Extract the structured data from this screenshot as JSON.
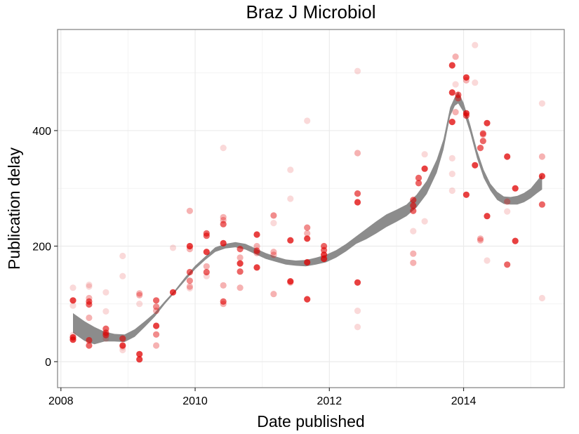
{
  "chart_data": {
    "type": "scatter",
    "title": "Braz J Microbiol",
    "xlabel": "Date published",
    "ylabel": "Publication delay",
    "xlim": [
      2007.95,
      2015.5
    ],
    "ylim": [
      -45,
      575
    ],
    "x_ticks": [
      2008,
      2010,
      2012,
      2014
    ],
    "x_tick_labels": [
      "2008",
      "2010",
      "2012",
      "2014"
    ],
    "y_ticks": [
      0,
      200,
      400
    ],
    "y_tick_labels": [
      "0",
      "200",
      "400"
    ],
    "grid": true,
    "legend": "none",
    "colors": {
      "point": "#e00000",
      "smooth": "#8c8c8c",
      "grid": "#ebebeb",
      "border": "#7f7f7f"
    },
    "points": [
      {
        "x": 2008.18,
        "y": 106,
        "a": 0.75
      },
      {
        "x": 2008.18,
        "y": 42,
        "a": 0.75
      },
      {
        "x": 2008.18,
        "y": 38,
        "a": 0.75
      },
      {
        "x": 2008.18,
        "y": 128,
        "a": 0.15
      },
      {
        "x": 2008.18,
        "y": 97,
        "a": 0.15
      },
      {
        "x": 2008.18,
        "y": 46,
        "a": 0.15
      },
      {
        "x": 2008.42,
        "y": 133,
        "a": 0.15
      },
      {
        "x": 2008.42,
        "y": 130,
        "a": 0.15
      },
      {
        "x": 2008.42,
        "y": 110,
        "a": 0.3
      },
      {
        "x": 2008.42,
        "y": 104,
        "a": 0.6
      },
      {
        "x": 2008.42,
        "y": 99,
        "a": 0.6
      },
      {
        "x": 2008.42,
        "y": 76,
        "a": 0.3
      },
      {
        "x": 2008.42,
        "y": 37,
        "a": 0.6
      },
      {
        "x": 2008.42,
        "y": 28,
        "a": 0.6
      },
      {
        "x": 2008.67,
        "y": 120,
        "a": 0.15
      },
      {
        "x": 2008.67,
        "y": 87,
        "a": 0.15
      },
      {
        "x": 2008.67,
        "y": 57,
        "a": 0.6
      },
      {
        "x": 2008.67,
        "y": 50,
        "a": 0.6
      },
      {
        "x": 2008.67,
        "y": 46,
        "a": 0.6
      },
      {
        "x": 2008.67,
        "y": 40,
        "a": 0.15
      },
      {
        "x": 2008.92,
        "y": 183,
        "a": 0.15
      },
      {
        "x": 2008.92,
        "y": 148,
        "a": 0.15
      },
      {
        "x": 2008.92,
        "y": 40,
        "a": 0.6
      },
      {
        "x": 2008.92,
        "y": 28,
        "a": 0.75
      },
      {
        "x": 2008.92,
        "y": 25,
        "a": 0.15
      },
      {
        "x": 2008.92,
        "y": 20,
        "a": 0.15
      },
      {
        "x": 2009.17,
        "y": 118,
        "a": 0.3
      },
      {
        "x": 2009.17,
        "y": 115,
        "a": 0.3
      },
      {
        "x": 2009.17,
        "y": 100,
        "a": 0.15
      },
      {
        "x": 2009.17,
        "y": 13,
        "a": 0.75
      },
      {
        "x": 2009.17,
        "y": 4,
        "a": 0.75
      },
      {
        "x": 2009.42,
        "y": 106,
        "a": 0.6
      },
      {
        "x": 2009.42,
        "y": 95,
        "a": 0.45
      },
      {
        "x": 2009.42,
        "y": 88,
        "a": 0.3
      },
      {
        "x": 2009.42,
        "y": 62,
        "a": 0.75
      },
      {
        "x": 2009.42,
        "y": 47,
        "a": 0.45
      },
      {
        "x": 2009.42,
        "y": 28,
        "a": 0.3
      },
      {
        "x": 2009.67,
        "y": 197,
        "a": 0.15
      },
      {
        "x": 2009.67,
        "y": 120,
        "a": 0.75
      },
      {
        "x": 2009.92,
        "y": 261,
        "a": 0.3
      },
      {
        "x": 2009.92,
        "y": 200,
        "a": 0.75
      },
      {
        "x": 2009.92,
        "y": 195,
        "a": 0.3
      },
      {
        "x": 2009.92,
        "y": 155,
        "a": 0.6
      },
      {
        "x": 2009.92,
        "y": 140,
        "a": 0.45
      },
      {
        "x": 2009.92,
        "y": 130,
        "a": 0.3
      },
      {
        "x": 2009.92,
        "y": 127,
        "a": 0.15
      },
      {
        "x": 2010.17,
        "y": 222,
        "a": 0.6
      },
      {
        "x": 2010.17,
        "y": 218,
        "a": 0.6
      },
      {
        "x": 2010.17,
        "y": 190,
        "a": 0.75
      },
      {
        "x": 2010.17,
        "y": 165,
        "a": 0.3
      },
      {
        "x": 2010.17,
        "y": 155,
        "a": 0.6
      },
      {
        "x": 2010.17,
        "y": 148,
        "a": 0.15
      },
      {
        "x": 2010.42,
        "y": 370,
        "a": 0.15
      },
      {
        "x": 2010.42,
        "y": 250,
        "a": 0.3
      },
      {
        "x": 2010.42,
        "y": 245,
        "a": 0.3
      },
      {
        "x": 2010.42,
        "y": 238,
        "a": 0.6
      },
      {
        "x": 2010.42,
        "y": 205,
        "a": 0.75
      },
      {
        "x": 2010.42,
        "y": 132,
        "a": 0.3
      },
      {
        "x": 2010.42,
        "y": 104,
        "a": 0.6
      },
      {
        "x": 2010.42,
        "y": 100,
        "a": 0.3
      },
      {
        "x": 2010.67,
        "y": 195,
        "a": 0.6
      },
      {
        "x": 2010.67,
        "y": 180,
        "a": 0.3
      },
      {
        "x": 2010.67,
        "y": 170,
        "a": 0.75
      },
      {
        "x": 2010.67,
        "y": 156,
        "a": 0.6
      },
      {
        "x": 2010.67,
        "y": 128,
        "a": 0.3
      },
      {
        "x": 2010.92,
        "y": 220,
        "a": 0.75
      },
      {
        "x": 2010.92,
        "y": 200,
        "a": 0.3
      },
      {
        "x": 2010.92,
        "y": 192,
        "a": 0.6
      },
      {
        "x": 2010.92,
        "y": 188,
        "a": 0.3
      },
      {
        "x": 2010.92,
        "y": 163,
        "a": 0.75
      },
      {
        "x": 2011.17,
        "y": 253,
        "a": 0.45
      },
      {
        "x": 2011.17,
        "y": 240,
        "a": 0.15
      },
      {
        "x": 2011.17,
        "y": 190,
        "a": 0.3
      },
      {
        "x": 2011.17,
        "y": 185,
        "a": 0.3
      },
      {
        "x": 2011.17,
        "y": 117,
        "a": 0.3
      },
      {
        "x": 2011.42,
        "y": 332,
        "a": 0.15
      },
      {
        "x": 2011.42,
        "y": 282,
        "a": 0.15
      },
      {
        "x": 2011.42,
        "y": 210,
        "a": 0.75
      },
      {
        "x": 2011.42,
        "y": 139,
        "a": 0.75
      },
      {
        "x": 2011.42,
        "y": 137,
        "a": 0.3
      },
      {
        "x": 2011.67,
        "y": 417,
        "a": 0.15
      },
      {
        "x": 2011.67,
        "y": 232,
        "a": 0.45
      },
      {
        "x": 2011.67,
        "y": 222,
        "a": 0.3
      },
      {
        "x": 2011.67,
        "y": 213,
        "a": 0.75
      },
      {
        "x": 2011.67,
        "y": 172,
        "a": 0.75
      },
      {
        "x": 2011.67,
        "y": 108,
        "a": 0.75
      },
      {
        "x": 2011.92,
        "y": 200,
        "a": 0.6
      },
      {
        "x": 2011.92,
        "y": 193,
        "a": 0.6
      },
      {
        "x": 2011.92,
        "y": 185,
        "a": 0.75
      },
      {
        "x": 2011.92,
        "y": 178,
        "a": 0.75
      },
      {
        "x": 2012.42,
        "y": 503,
        "a": 0.15
      },
      {
        "x": 2012.42,
        "y": 361,
        "a": 0.3
      },
      {
        "x": 2012.42,
        "y": 291,
        "a": 0.6
      },
      {
        "x": 2012.42,
        "y": 276,
        "a": 0.75
      },
      {
        "x": 2012.42,
        "y": 137,
        "a": 0.75
      },
      {
        "x": 2012.42,
        "y": 88,
        "a": 0.15
      },
      {
        "x": 2012.42,
        "y": 60,
        "a": 0.15
      },
      {
        "x": 2013.25,
        "y": 280,
        "a": 0.6
      },
      {
        "x": 2013.25,
        "y": 270,
        "a": 0.6
      },
      {
        "x": 2013.25,
        "y": 261,
        "a": 0.6
      },
      {
        "x": 2013.25,
        "y": 226,
        "a": 0.15
      },
      {
        "x": 2013.25,
        "y": 187,
        "a": 0.3
      },
      {
        "x": 2013.25,
        "y": 171,
        "a": 0.3
      },
      {
        "x": 2013.33,
        "y": 318,
        "a": 0.6
      },
      {
        "x": 2013.33,
        "y": 309,
        "a": 0.6
      },
      {
        "x": 2013.42,
        "y": 359,
        "a": 0.15
      },
      {
        "x": 2013.42,
        "y": 334,
        "a": 0.75
      },
      {
        "x": 2013.42,
        "y": 243,
        "a": 0.15
      },
      {
        "x": 2013.83,
        "y": 513,
        "a": 0.75
      },
      {
        "x": 2013.83,
        "y": 466,
        "a": 0.75
      },
      {
        "x": 2013.83,
        "y": 415,
        "a": 0.75
      },
      {
        "x": 2013.83,
        "y": 352,
        "a": 0.15
      },
      {
        "x": 2013.83,
        "y": 325,
        "a": 0.15
      },
      {
        "x": 2013.83,
        "y": 296,
        "a": 0.15
      },
      {
        "x": 2013.88,
        "y": 528,
        "a": 0.3
      },
      {
        "x": 2013.88,
        "y": 480,
        "a": 0.15
      },
      {
        "x": 2013.88,
        "y": 432,
        "a": 0.3
      },
      {
        "x": 2013.92,
        "y": 462,
        "a": 0.6
      },
      {
        "x": 2013.92,
        "y": 456,
        "a": 0.45
      },
      {
        "x": 2014.04,
        "y": 492,
        "a": 0.75
      },
      {
        "x": 2014.04,
        "y": 487,
        "a": 0.3
      },
      {
        "x": 2014.04,
        "y": 430,
        "a": 0.75
      },
      {
        "x": 2014.04,
        "y": 426,
        "a": 0.6
      },
      {
        "x": 2014.04,
        "y": 289,
        "a": 0.75
      },
      {
        "x": 2014.17,
        "y": 548,
        "a": 0.15
      },
      {
        "x": 2014.17,
        "y": 483,
        "a": 0.15
      },
      {
        "x": 2014.17,
        "y": 340,
        "a": 0.75
      },
      {
        "x": 2014.25,
        "y": 370,
        "a": 0.6
      },
      {
        "x": 2014.25,
        "y": 213,
        "a": 0.3
      },
      {
        "x": 2014.25,
        "y": 210,
        "a": 0.3
      },
      {
        "x": 2014.29,
        "y": 395,
        "a": 0.6
      },
      {
        "x": 2014.29,
        "y": 393,
        "a": 0.3
      },
      {
        "x": 2014.29,
        "y": 382,
        "a": 0.6
      },
      {
        "x": 2014.35,
        "y": 413,
        "a": 0.75
      },
      {
        "x": 2014.35,
        "y": 252,
        "a": 0.75
      },
      {
        "x": 2014.35,
        "y": 175,
        "a": 0.15
      },
      {
        "x": 2014.65,
        "y": 355,
        "a": 0.75
      },
      {
        "x": 2014.65,
        "y": 277,
        "a": 0.3
      },
      {
        "x": 2014.65,
        "y": 260,
        "a": 0.15
      },
      {
        "x": 2014.65,
        "y": 168,
        "a": 0.6
      },
      {
        "x": 2014.77,
        "y": 300,
        "a": 0.75
      },
      {
        "x": 2014.77,
        "y": 209,
        "a": 0.75
      },
      {
        "x": 2015.17,
        "y": 447,
        "a": 0.15
      },
      {
        "x": 2015.17,
        "y": 355,
        "a": 0.3
      },
      {
        "x": 2015.17,
        "y": 321,
        "a": 0.75
      },
      {
        "x": 2015.17,
        "y": 272,
        "a": 0.6
      },
      {
        "x": 2015.17,
        "y": 110,
        "a": 0.15
      }
    ],
    "smooth": {
      "x": [
        2008.18,
        2008.35,
        2008.5,
        2008.65,
        2008.8,
        2008.95,
        2009.1,
        2009.25,
        2009.4,
        2009.55,
        2009.7,
        2009.85,
        2010.0,
        2010.15,
        2010.3,
        2010.45,
        2010.6,
        2010.75,
        2010.9,
        2011.05,
        2011.2,
        2011.35,
        2011.5,
        2011.65,
        2011.8,
        2011.95,
        2012.1,
        2012.25,
        2012.4,
        2012.55,
        2012.7,
        2012.85,
        2013.0,
        2013.15,
        2013.3,
        2013.45,
        2013.6,
        2013.7,
        2013.8,
        2013.87,
        2013.92,
        2014.0,
        2014.1,
        2014.2,
        2014.3,
        2014.4,
        2014.5,
        2014.6,
        2014.7,
        2014.8,
        2014.9,
        2015.0,
        2015.1,
        2015.17
      ],
      "lower": [
        50,
        36,
        30,
        35,
        35,
        34,
        43,
        60,
        78,
        100,
        120,
        140,
        160,
        176,
        190,
        196,
        198,
        194,
        186,
        178,
        173,
        168,
        166,
        165,
        168,
        172,
        180,
        191,
        204,
        212,
        222,
        233,
        242,
        252,
        267,
        290,
        327,
        367,
        425,
        443,
        447,
        432,
        396,
        352,
        318,
        296,
        280,
        273,
        272,
        272,
        276,
        283,
        292,
        298
      ],
      "upper": [
        84,
        70,
        60,
        52,
        48,
        47,
        56,
        70,
        85,
        105,
        124,
        146,
        166,
        182,
        198,
        204,
        207,
        204,
        196,
        188,
        182,
        177,
        175,
        176,
        180,
        185,
        193,
        204,
        217,
        230,
        243,
        255,
        263,
        272,
        289,
        313,
        350,
        385,
        440,
        458,
        467,
        448,
        410,
        366,
        332,
        308,
        294,
        286,
        285,
        287,
        292,
        300,
        314,
        324
      ]
    }
  }
}
